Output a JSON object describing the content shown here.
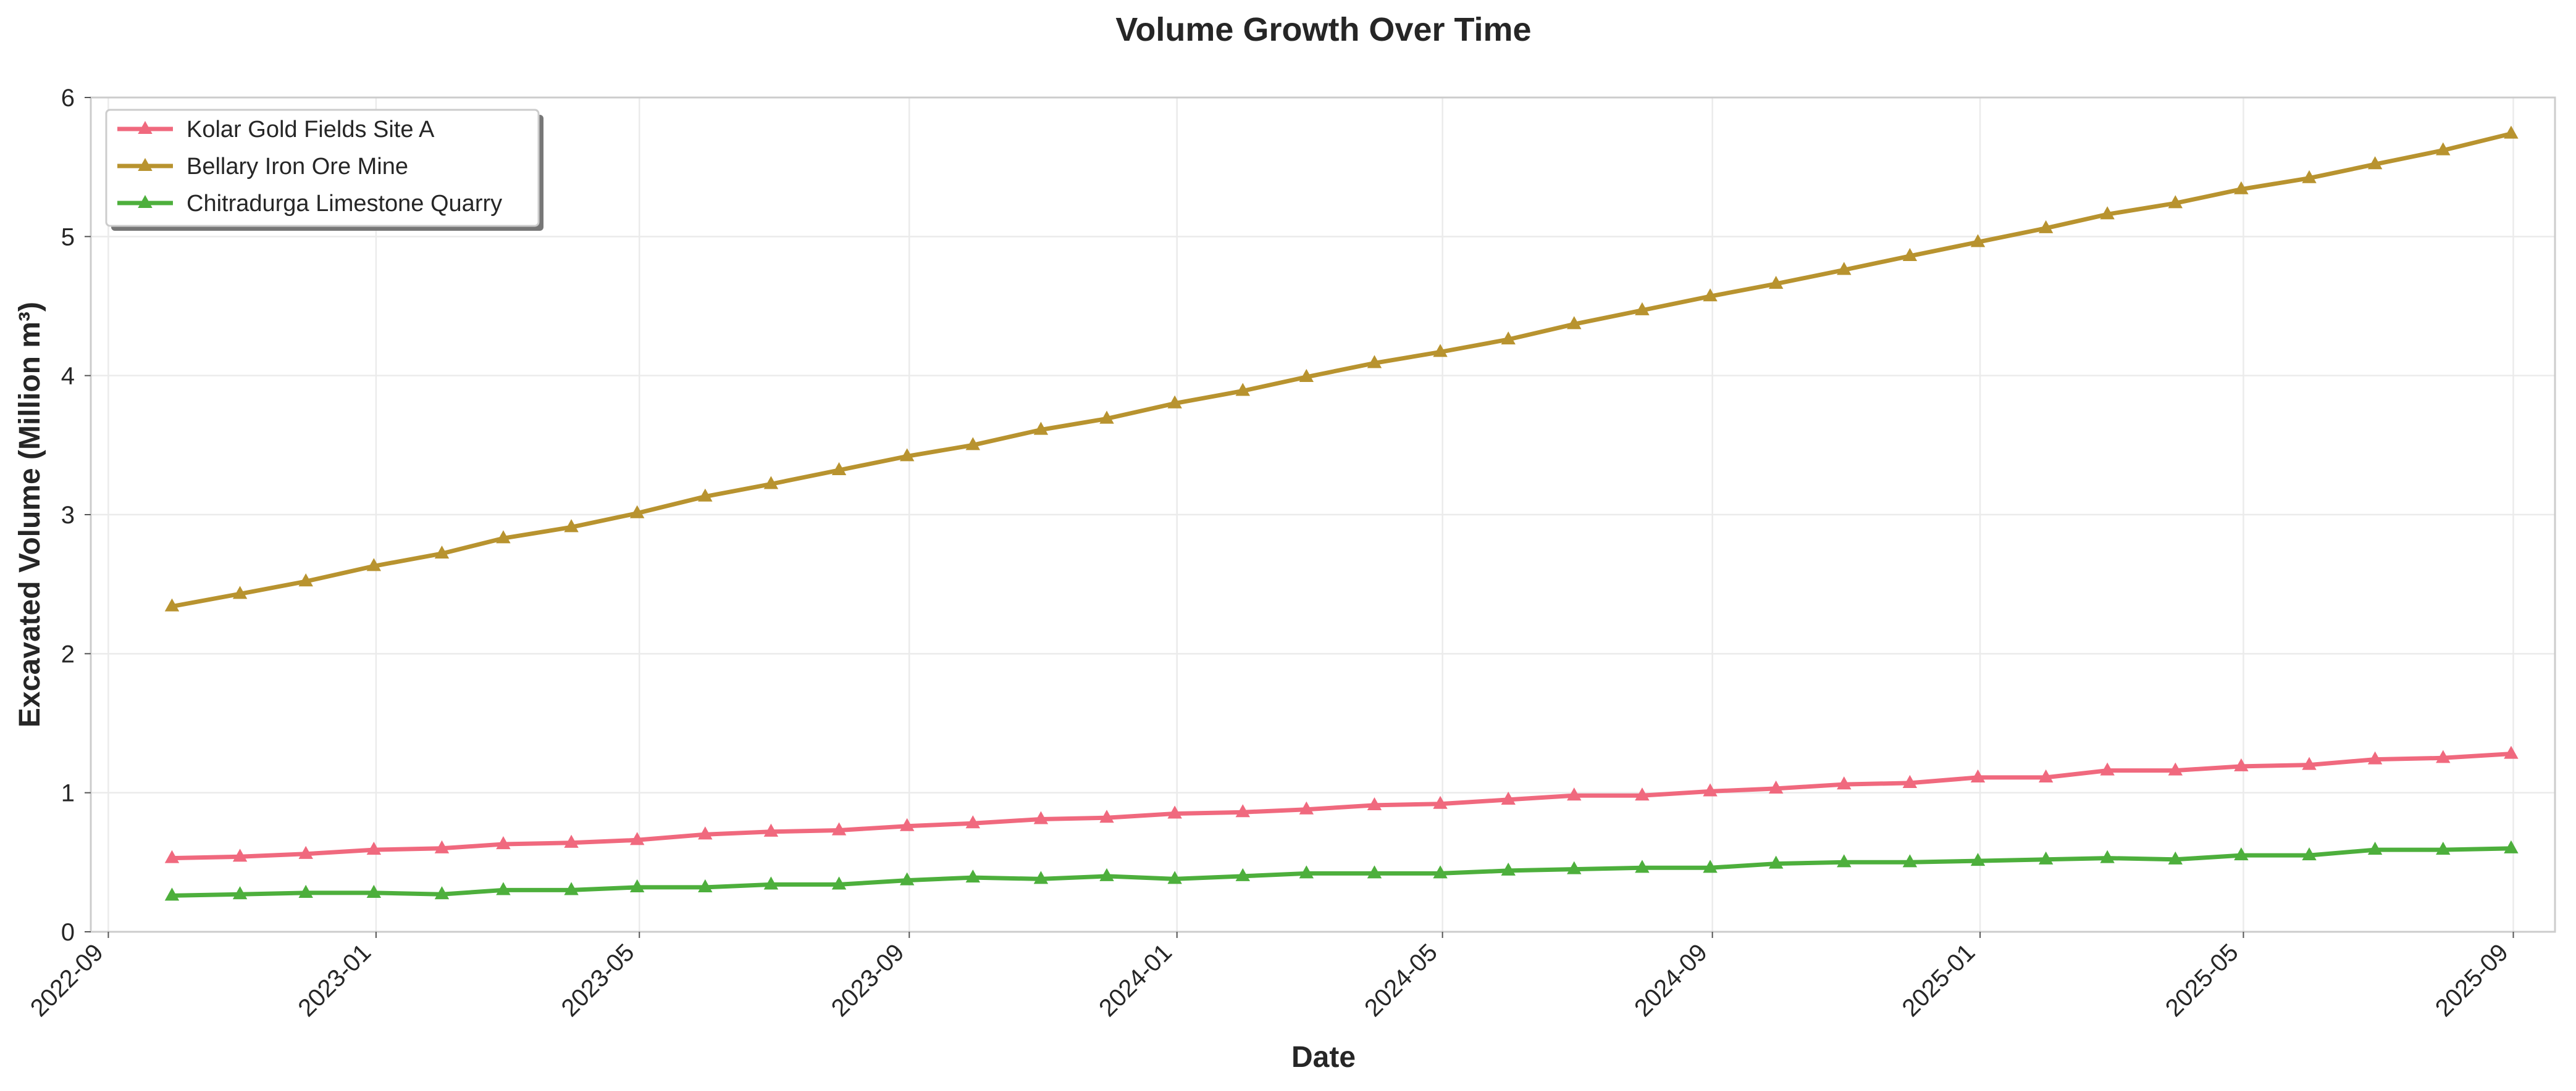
{
  "chart_data": {
    "type": "line",
    "title": "Volume Growth Over Time",
    "xlabel": "Date",
    "ylabel": "Excavated Volume (Million m³)",
    "x_axis_type": "date",
    "xlim": [
      "2022-08-24",
      "2025-09-20"
    ],
    "ylim": [
      0,
      6
    ],
    "xticks": [
      "2022-09",
      "2023-01",
      "2023-05",
      "2023-09",
      "2024-01",
      "2024-05",
      "2024-09",
      "2025-01",
      "2025-05",
      "2025-09"
    ],
    "yticks": [
      0,
      1,
      2,
      3,
      4,
      5,
      6
    ],
    "grid": true,
    "legend_position": "top-left",
    "marker": "triangle-up",
    "x": [
      "2022-09-30",
      "2022-10-31",
      "2022-11-30",
      "2022-12-31",
      "2023-01-31",
      "2023-02-28",
      "2023-03-31",
      "2023-04-30",
      "2023-05-31",
      "2023-06-30",
      "2023-07-31",
      "2023-08-31",
      "2023-09-30",
      "2023-10-31",
      "2023-11-30",
      "2023-12-31",
      "2024-01-31",
      "2024-02-29",
      "2024-03-31",
      "2024-04-30",
      "2024-05-31",
      "2024-06-30",
      "2024-07-31",
      "2024-08-31",
      "2024-09-30",
      "2024-10-31",
      "2024-11-30",
      "2024-12-31",
      "2025-01-31",
      "2025-02-28",
      "2025-03-31",
      "2025-04-30",
      "2025-05-31",
      "2025-06-30",
      "2025-07-31",
      "2025-08-31"
    ],
    "series": [
      {
        "name": "Kolar Gold Fields Site A",
        "color": "#f0697e",
        "values": [
          0.53,
          0.54,
          0.56,
          0.59,
          0.6,
          0.63,
          0.64,
          0.66,
          0.7,
          0.72,
          0.73,
          0.76,
          0.78,
          0.81,
          0.82,
          0.85,
          0.86,
          0.88,
          0.91,
          0.92,
          0.95,
          0.98,
          0.98,
          1.01,
          1.03,
          1.06,
          1.07,
          1.11,
          1.11,
          1.16,
          1.16,
          1.19,
          1.2,
          1.24,
          1.25,
          1.28
        ]
      },
      {
        "name": "Bellary Iron Ore Mine",
        "color": "#b8932f",
        "values": [
          2.34,
          2.43,
          2.52,
          2.63,
          2.72,
          2.83,
          2.91,
          3.01,
          3.13,
          3.22,
          3.32,
          3.42,
          3.5,
          3.61,
          3.69,
          3.8,
          3.89,
          3.99,
          4.09,
          4.17,
          4.26,
          4.37,
          4.47,
          4.57,
          4.66,
          4.76,
          4.86,
          4.96,
          5.06,
          5.16,
          5.24,
          5.34,
          5.42,
          5.52,
          5.62,
          5.74
        ]
      },
      {
        "name": "Chitradurga Limestone Quarry",
        "color": "#4daf3c",
        "values": [
          0.26,
          0.27,
          0.28,
          0.28,
          0.27,
          0.3,
          0.3,
          0.32,
          0.32,
          0.34,
          0.34,
          0.37,
          0.39,
          0.38,
          0.4,
          0.38,
          0.4,
          0.42,
          0.42,
          0.42,
          0.44,
          0.45,
          0.46,
          0.46,
          0.49,
          0.5,
          0.5,
          0.51,
          0.52,
          0.53,
          0.52,
          0.55,
          0.55,
          0.59,
          0.59,
          0.6
        ]
      }
    ]
  }
}
